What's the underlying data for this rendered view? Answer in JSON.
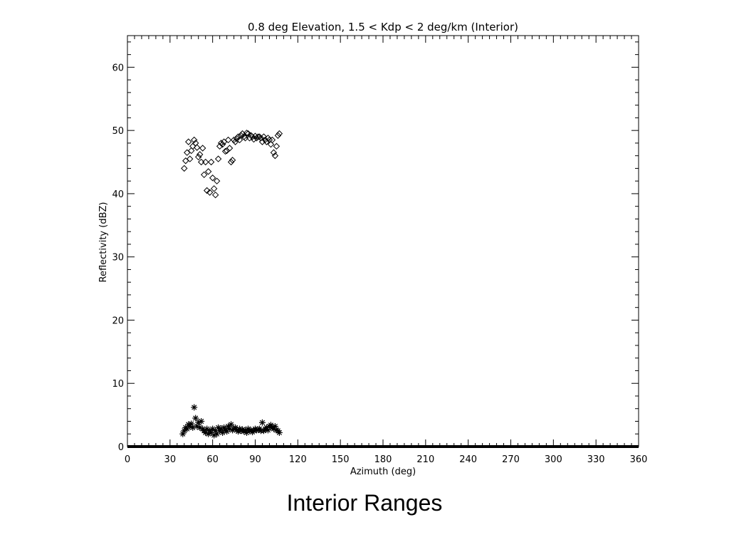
{
  "caption": "Interior Ranges",
  "chart_data": {
    "type": "scatter",
    "title": "0.8 deg Elevation, 1.5 < Kdp < 2 deg/km (Interior)",
    "xlabel": "Azimuth (deg)",
    "ylabel": "Reflectivity (dBZ)",
    "xlim": [
      0,
      360
    ],
    "ylim": [
      0,
      65
    ],
    "xticks": [
      0,
      30,
      60,
      90,
      120,
      150,
      180,
      210,
      240,
      270,
      300,
      330,
      360
    ],
    "yticks": [
      0,
      10,
      20,
      30,
      40,
      50,
      60
    ],
    "grid": false,
    "series": [
      {
        "marker": "diamond",
        "x": [
          40,
          41,
          42,
          43,
          44,
          45,
          46,
          47,
          48,
          49,
          50,
          51,
          52,
          53,
          54,
          55,
          56,
          57,
          58,
          59,
          60,
          61,
          62,
          63,
          64,
          65,
          66,
          67,
          68,
          69,
          70,
          71,
          72,
          73,
          74,
          75,
          76,
          77,
          78,
          79,
          80,
          81,
          82,
          83,
          84,
          85,
          86,
          87,
          88,
          89,
          90,
          91,
          92,
          93,
          94,
          95,
          96,
          97,
          98,
          99,
          100,
          101,
          102,
          103,
          104,
          105,
          106,
          107
        ],
        "y": [
          44,
          45.2,
          46.5,
          48.2,
          45.5,
          46.8,
          47.5,
          48.5,
          48,
          47.3,
          45.8,
          46.2,
          45,
          47.2,
          43,
          45,
          40.5,
          43.5,
          40.2,
          45,
          42.5,
          40.8,
          39.8,
          42,
          45.5,
          47.5,
          48,
          47.8,
          48.2,
          46.7,
          46.8,
          48.5,
          47.2,
          45,
          45.3,
          48.5,
          48.2,
          48.7,
          49,
          48.5,
          49.2,
          49.5,
          49,
          48.8,
          49.6,
          49.5,
          48.8,
          49.2,
          49,
          48.6,
          49.1,
          48.8,
          49,
          49,
          48.8,
          48.2,
          49,
          48.5,
          48.2,
          48.8,
          48.5,
          47.8,
          48.5,
          46.5,
          46,
          47.5,
          49.2,
          49.5
        ]
      },
      {
        "marker": "asterisk",
        "x": [
          39,
          40,
          41,
          42,
          43,
          44,
          45,
          46,
          47,
          48,
          49,
          50,
          51,
          52,
          53,
          54,
          55,
          56,
          57,
          58,
          59,
          60,
          61,
          62,
          63,
          64,
          65,
          66,
          67,
          68,
          69,
          70,
          71,
          72,
          73,
          74,
          75,
          76,
          77,
          78,
          79,
          80,
          81,
          82,
          83,
          84,
          85,
          86,
          87,
          88,
          89,
          90,
          91,
          92,
          93,
          94,
          95,
          96,
          97,
          98,
          99,
          100,
          101,
          102,
          103,
          104,
          105,
          106,
          107
        ],
        "y": [
          2,
          2.5,
          3,
          2.8,
          3.5,
          3.2,
          3.6,
          3,
          6.2,
          4.5,
          3.2,
          3.8,
          3,
          4,
          2.8,
          2.5,
          2.2,
          2.8,
          2,
          2.5,
          2.2,
          2.8,
          1.8,
          2.5,
          2,
          3,
          2.5,
          2.8,
          2.2,
          3,
          2.6,
          2.4,
          3.2,
          2.8,
          3.5,
          2.6,
          2.8,
          3,
          2.6,
          2.4,
          2.8,
          2.5,
          2.7,
          2.4,
          2.6,
          2.2,
          2.8,
          2.5,
          2.6,
          2.3,
          2.5,
          2.8,
          2.6,
          2.7,
          2.8,
          2.5,
          3.8,
          2.5,
          2.8,
          3,
          2.6,
          3.2,
          3.4,
          3,
          2.8,
          3.2,
          2.6,
          2.5,
          2.2
        ]
      },
      {
        "marker": "asterisk",
        "x": [
          0,
          360
        ],
        "y": [
          0,
          0
        ],
        "style": "dense-baseline"
      }
    ]
  }
}
